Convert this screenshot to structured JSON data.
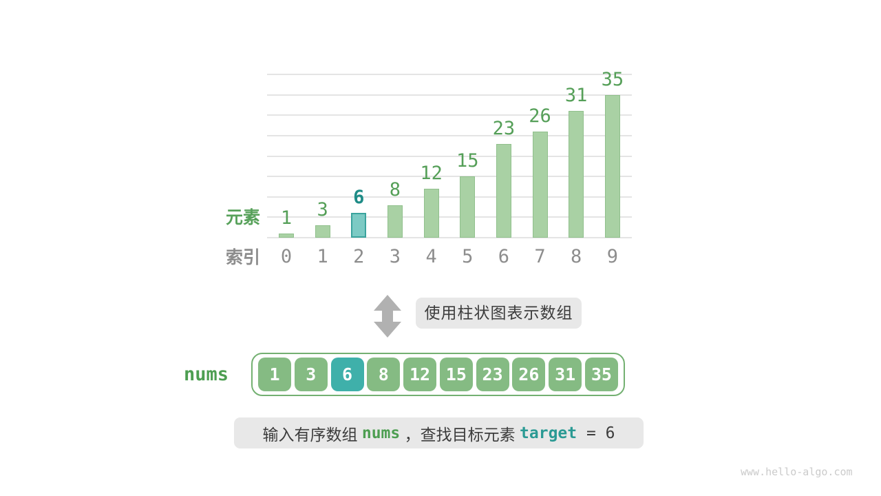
{
  "chart_data": {
    "type": "bar",
    "categories": [
      0,
      1,
      2,
      3,
      4,
      5,
      6,
      7,
      8,
      9
    ],
    "values": [
      1,
      3,
      6,
      8,
      12,
      15,
      23,
      26,
      31,
      35
    ],
    "highlight_index": 2,
    "title": "",
    "xlabel": "索引",
    "ylabel": "元素",
    "ylim": [
      0,
      40
    ],
    "gridline_step": 5,
    "grid": "horizontal",
    "legend_position": "none"
  },
  "axis": {
    "element_label": "元素",
    "index_label": "索引"
  },
  "transition": {
    "arrow_icon": "up-down-arrow",
    "label": "使用柱状图表示数组"
  },
  "array": {
    "name_label": "nums",
    "values": [
      1,
      3,
      6,
      8,
      12,
      15,
      23,
      26,
      31,
      35
    ],
    "highlight_index": 2
  },
  "caption": {
    "prefix": "输入有序数组 ",
    "nums_code": "nums",
    "comma": " ，",
    "middle": "查找目标元素 ",
    "target_code": "target",
    "equals": " = ",
    "target_value": "6"
  },
  "watermark": "www.hello-algo.com",
  "colors": {
    "bar_fill": "#a9d1a4",
    "bar_border": "#90c08c",
    "bar_highlight_fill": "#7ccac4",
    "bar_highlight_border": "#3aa39d",
    "value_green": "#559f58",
    "value_teal": "#1f8c87",
    "index_gray": "#8d8d8d",
    "cell_green": "#85bb83",
    "cell_teal": "#3fb0aa",
    "array_border": "#73b071",
    "note_bg": "#e8e8e8",
    "note_text": "#3c3c3c",
    "arrow_gray": "#b1b1b1"
  }
}
